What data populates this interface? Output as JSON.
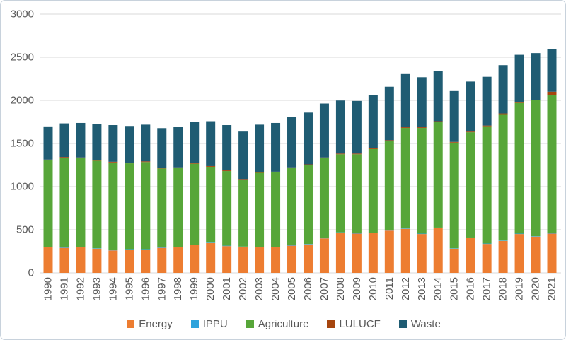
{
  "chart_data": {
    "type": "bar",
    "stacked": true,
    "title": "",
    "xlabel": "",
    "ylabel": "",
    "ylim": [
      0,
      3000
    ],
    "ytick_step": 500,
    "ytick_labels": [
      "0",
      "500",
      "1000",
      "1500",
      "2000",
      "2500",
      "3000"
    ],
    "grid": true,
    "legend_position": "bottom",
    "categories": [
      "1990",
      "1991",
      "1992",
      "1993",
      "1994",
      "1995",
      "1996",
      "1997",
      "1998",
      "1999",
      "2000",
      "2001",
      "2002",
      "2003",
      "2004",
      "2005",
      "2006",
      "2007",
      "2008",
      "2009",
      "2010",
      "2011",
      "2012",
      "2013",
      "2014",
      "2015",
      "2016",
      "2017",
      "2018",
      "2019",
      "2020",
      "2021"
    ],
    "series": [
      {
        "name": "Energy",
        "color": "#ED7D31",
        "values": [
          295,
          290,
          295,
          280,
          260,
          270,
          270,
          290,
          295,
          320,
          345,
          310,
          300,
          295,
          295,
          315,
          330,
          400,
          465,
          455,
          460,
          490,
          510,
          450,
          520,
          280,
          405,
          335,
          370,
          450,
          420,
          455
        ]
      },
      {
        "name": "IPPU",
        "color": "#2EA3DC",
        "values": [
          5,
          5,
          5,
          5,
          5,
          5,
          5,
          5,
          5,
          5,
          5,
          5,
          5,
          5,
          5,
          5,
          5,
          5,
          5,
          5,
          5,
          5,
          5,
          5,
          5,
          5,
          5,
          5,
          5,
          5,
          5,
          5
        ]
      },
      {
        "name": "Agriculture",
        "color": "#57A639",
        "values": [
          1005,
          1040,
          1030,
          1015,
          1015,
          995,
          1010,
          915,
          915,
          940,
          880,
          865,
          775,
          860,
          865,
          895,
          915,
          925,
          905,
          915,
          970,
          1035,
          1165,
          1225,
          1225,
          1225,
          1220,
          1360,
          1465,
          1515,
          1575,
          1600
        ]
      },
      {
        "name": "LULUCF",
        "color": "#A6450E",
        "values": [
          8,
          8,
          8,
          8,
          8,
          8,
          8,
          8,
          8,
          8,
          8,
          8,
          8,
          8,
          8,
          8,
          8,
          8,
          8,
          8,
          8,
          8,
          8,
          8,
          8,
          8,
          8,
          8,
          8,
          8,
          8,
          40
        ]
      },
      {
        "name": "Waste",
        "color": "#1F5C73",
        "values": [
          385,
          390,
          400,
          420,
          425,
          425,
          425,
          460,
          470,
          480,
          520,
          525,
          550,
          550,
          565,
          585,
          600,
          625,
          615,
          610,
          620,
          620,
          625,
          580,
          580,
          590,
          580,
          565,
          560,
          550,
          540,
          495
        ]
      }
    ],
    "colors": {
      "axis_text": "#595959",
      "gridline": "#D9D9D9",
      "frame_border": "#C8D2DC",
      "background": "#FFFFFF"
    }
  }
}
